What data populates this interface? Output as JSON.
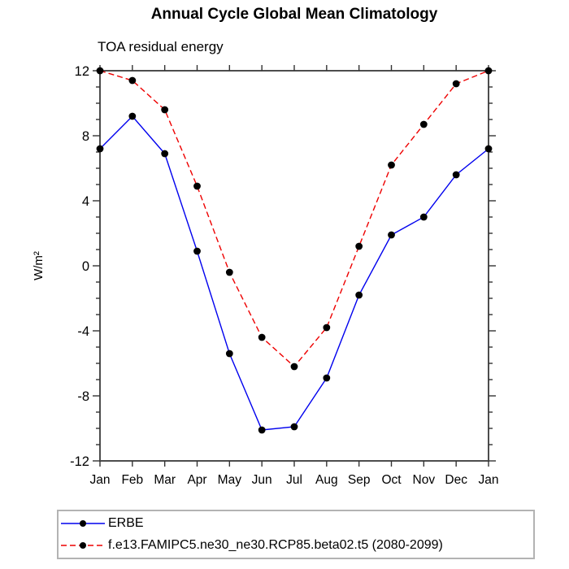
{
  "chart_data": {
    "type": "line",
    "title": "Annual Cycle Global Mean Climatology",
    "subtitle": "TOA residual energy",
    "ylabel": "W/m²",
    "xlabel": "",
    "ylim": [
      -12,
      12
    ],
    "ytick_major": [
      12,
      8,
      4,
      0,
      -4,
      -8,
      -12
    ],
    "ytick_labels": [
      "12",
      "8",
      "4",
      "0",
      "-4",
      "-8",
      "-12"
    ],
    "ytick_minor_interval": 1,
    "grid": false,
    "legend_position": "bottom-left-box",
    "categories": [
      "Jan",
      "Feb",
      "Mar",
      "Apr",
      "May",
      "Jun",
      "Jul",
      "Aug",
      "Sep",
      "Oct",
      "Nov",
      "Dec",
      "Jan"
    ],
    "series": [
      {
        "name": "ERBE",
        "color": "#0000ee",
        "style": "solid",
        "marker": "filled-circle",
        "values": [
          7.2,
          9.2,
          6.9,
          0.9,
          -5.4,
          -10.1,
          -9.9,
          -6.9,
          -1.8,
          1.9,
          3.0,
          5.6,
          7.2
        ]
      },
      {
        "name": "f.e13.FAMIPC5.ne30_ne30.RCP85.beta02.t5 (2080-2099)",
        "color": "#ee0000",
        "style": "dashed",
        "marker": "filled-circle",
        "values": [
          12.0,
          11.4,
          9.6,
          4.9,
          -0.4,
          -4.4,
          -6.2,
          -3.8,
          1.2,
          6.2,
          8.7,
          11.2,
          12.0
        ]
      }
    ],
    "colors": {
      "marker": "#000000",
      "axis": "#4d4d4d",
      "tick": "#333333",
      "text": "#000000",
      "legend_border": "#b3b3b3"
    }
  }
}
